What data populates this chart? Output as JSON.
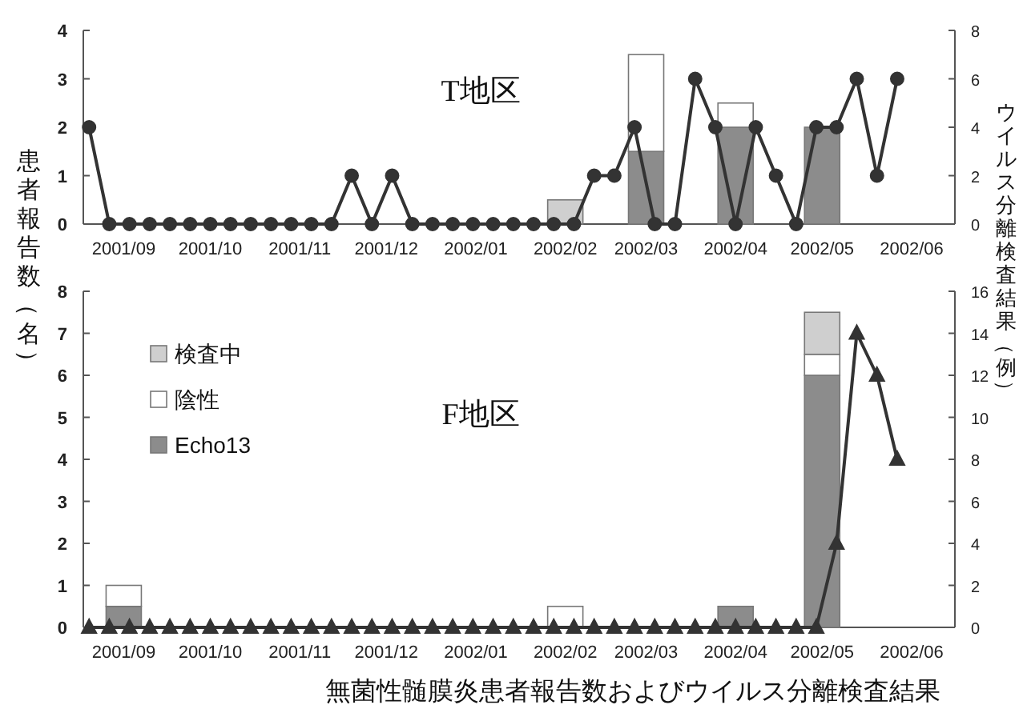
{
  "chart_data": [
    {
      "type": "bar",
      "title": "T地区",
      "ylabel": "患者報告数（名）",
      "y2label": "ウイルス分離検査結果（例）",
      "stacked": true,
      "marker": "circle",
      "xlim": [
        "2001-09-01",
        "2002-06-30"
      ],
      "xticks": [
        {
          "value": "2001-09-15",
          "label": "2001/09"
        },
        {
          "value": "2001-10-15",
          "label": "2001/10"
        },
        {
          "value": "2001-11-15",
          "label": "2001/11"
        },
        {
          "value": "2001-12-15",
          "label": "2001/12"
        },
        {
          "value": "2002-01-15",
          "label": "2002/01"
        },
        {
          "value": "2002-02-15",
          "label": "2002/02"
        },
        {
          "value": "2002-03-15",
          "label": "2002/03"
        },
        {
          "value": "2002-04-15",
          "label": "2002/04"
        },
        {
          "value": "2002-05-15",
          "label": "2002/05"
        },
        {
          "value": "2002-06-15",
          "label": "2002/06"
        }
      ],
      "ylim": [
        0,
        4
      ],
      "yticks": [
        0,
        1,
        2,
        3,
        4
      ],
      "y2lim": [
        0,
        8
      ],
      "y2ticks": [
        0,
        2,
        4,
        6,
        8
      ],
      "series": [
        {
          "type": "bar",
          "axis": "y2",
          "color": "#8c8c8c",
          "x": [
            "2001-09-15",
            "2001-10-15",
            "2001-11-15",
            "2001-12-15",
            "2002-01-15",
            "2002-02-15",
            "2002-03-15",
            "2002-04-15",
            "2002-05-15",
            "2002-06-15"
          ],
          "values": [
            0,
            0,
            0,
            0,
            0,
            0,
            3,
            4,
            4,
            0
          ]
        },
        {
          "type": "bar",
          "axis": "y2",
          "color": "#ffffff",
          "x": [
            "2001-09-15",
            "2001-10-15",
            "2001-11-15",
            "2001-12-15",
            "2002-01-15",
            "2002-02-15",
            "2002-03-15",
            "2002-04-15",
            "2002-05-15",
            "2002-06-15"
          ],
          "values": [
            0,
            0,
            0,
            0,
            0,
            0,
            4,
            1,
            0,
            0
          ]
        },
        {
          "type": "bar",
          "axis": "y2",
          "color": "#cfcfcf",
          "x": [
            "2001-09-15",
            "2001-10-15",
            "2001-11-15",
            "2001-12-15",
            "2002-01-15",
            "2002-02-15",
            "2002-03-15",
            "2002-04-15",
            "2002-05-15",
            "2002-06-15"
          ],
          "values": [
            0,
            0,
            0,
            0,
            0,
            1,
            0,
            0,
            0,
            0
          ]
        },
        {
          "type": "line",
          "color": "#333333",
          "x": [
            "2001-09-03",
            "2001-09-10",
            "2001-09-17",
            "2001-09-24",
            "2001-10-01",
            "2001-10-08",
            "2001-10-15",
            "2001-10-22",
            "2001-10-29",
            "2001-11-05",
            "2001-11-12",
            "2001-11-19",
            "2001-11-26",
            "2001-12-03",
            "2001-12-10",
            "2001-12-17",
            "2001-12-24",
            "2001-12-31",
            "2002-01-07",
            "2002-01-14",
            "2002-01-21",
            "2002-01-28",
            "2002-02-04",
            "2002-02-11",
            "2002-02-18",
            "2002-02-25",
            "2002-03-04",
            "2002-03-11",
            "2002-03-18",
            "2002-03-25",
            "2002-04-01",
            "2002-04-08",
            "2002-04-15",
            "2002-04-22",
            "2002-04-29",
            "2002-05-06",
            "2002-05-13",
            "2002-05-20",
            "2002-05-27",
            "2002-06-03",
            "2002-06-10"
          ],
          "values": [
            2,
            0,
            0,
            0,
            0,
            0,
            0,
            0,
            0,
            0,
            0,
            0,
            0,
            1,
            0,
            1,
            0,
            0,
            0,
            0,
            0,
            0,
            0,
            0,
            0,
            1,
            1,
            2,
            0,
            0,
            3,
            2,
            0,
            2,
            1,
            0,
            2,
            2,
            3,
            1,
            3
          ]
        }
      ]
    },
    {
      "type": "bar",
      "title": "F地区",
      "stacked": true,
      "marker": "triangle",
      "legend": "top left",
      "annotations": [
        "無菌性髄膜炎患者報告数およびウイルス分離検査結果"
      ],
      "xlim": [
        "2001-09-01",
        "2002-06-30"
      ],
      "xticks": [
        {
          "value": "2001-09-15",
          "label": "2001/09"
        },
        {
          "value": "2001-10-15",
          "label": "2001/10"
        },
        {
          "value": "2001-11-15",
          "label": "2001/11"
        },
        {
          "value": "2001-12-15",
          "label": "2001/12"
        },
        {
          "value": "2002-01-15",
          "label": "2002/01"
        },
        {
          "value": "2002-02-15",
          "label": "2002/02"
        },
        {
          "value": "2002-03-15",
          "label": "2002/03"
        },
        {
          "value": "2002-04-15",
          "label": "2002/04"
        },
        {
          "value": "2002-05-15",
          "label": "2002/05"
        },
        {
          "value": "2002-06-15",
          "label": "2002/06"
        }
      ],
      "ylim": [
        0,
        8
      ],
      "yticks": [
        0,
        1,
        2,
        3,
        4,
        5,
        6,
        7,
        8
      ],
      "y2lim": [
        0,
        16
      ],
      "y2ticks": [
        0,
        2,
        4,
        6,
        8,
        10,
        12,
        14,
        16
      ],
      "series": [
        {
          "type": "bar",
          "axis": "y2",
          "name": "Echo13",
          "color": "#8c8c8c",
          "x": [
            "2001-09-15",
            "2001-10-15",
            "2001-11-15",
            "2001-12-15",
            "2002-01-15",
            "2002-02-15",
            "2002-03-15",
            "2002-04-15",
            "2002-05-15",
            "2002-06-15"
          ],
          "values": [
            1,
            0,
            0,
            0,
            0,
            0,
            0,
            1,
            12,
            0
          ]
        },
        {
          "type": "bar",
          "axis": "y2",
          "name": "陰性",
          "color": "#ffffff",
          "x": [
            "2001-09-15",
            "2001-10-15",
            "2001-11-15",
            "2001-12-15",
            "2002-01-15",
            "2002-02-15",
            "2002-03-15",
            "2002-04-15",
            "2002-05-15",
            "2002-06-15"
          ],
          "values": [
            1,
            0,
            0,
            0,
            0,
            1,
            0,
            0,
            1,
            0
          ]
        },
        {
          "type": "bar",
          "axis": "y2",
          "name": "検査中",
          "color": "#cfcfcf",
          "x": [
            "2001-09-15",
            "2001-10-15",
            "2001-11-15",
            "2001-12-15",
            "2002-01-15",
            "2002-02-15",
            "2002-03-15",
            "2002-04-15",
            "2002-05-15",
            "2002-06-15"
          ],
          "values": [
            0,
            0,
            0,
            0,
            0,
            0,
            0,
            0,
            2,
            0
          ]
        },
        {
          "type": "line",
          "color": "#333333",
          "x": [
            "2001-09-03",
            "2001-09-10",
            "2001-09-17",
            "2001-09-24",
            "2001-10-01",
            "2001-10-08",
            "2001-10-15",
            "2001-10-22",
            "2001-10-29",
            "2001-11-05",
            "2001-11-12",
            "2001-11-19",
            "2001-11-26",
            "2001-12-03",
            "2001-12-10",
            "2001-12-17",
            "2001-12-24",
            "2001-12-31",
            "2002-01-07",
            "2002-01-14",
            "2002-01-21",
            "2002-01-28",
            "2002-02-04",
            "2002-02-11",
            "2002-02-18",
            "2002-02-25",
            "2002-03-04",
            "2002-03-11",
            "2002-03-18",
            "2002-03-25",
            "2002-04-01",
            "2002-04-08",
            "2002-04-15",
            "2002-04-22",
            "2002-04-29",
            "2002-05-06",
            "2002-05-13",
            "2002-05-20",
            "2002-05-27",
            "2002-06-03",
            "2002-06-10"
          ],
          "values": [
            0,
            0,
            0,
            0,
            0,
            0,
            0,
            0,
            0,
            0,
            0,
            0,
            0,
            0,
            0,
            0,
            0,
            0,
            0,
            0,
            0,
            0,
            0,
            0,
            0,
            0,
            0,
            0,
            0,
            0,
            0,
            0,
            0,
            0,
            0,
            0,
            0,
            2,
            7,
            6,
            4
          ]
        }
      ]
    }
  ]
}
